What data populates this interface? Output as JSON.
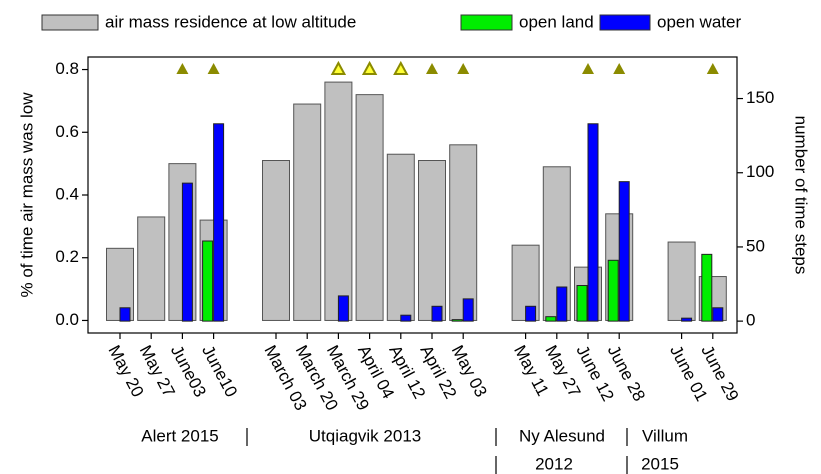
{
  "chart_data": {
    "type": "bar",
    "categories": [
      "May 20",
      "May 27",
      "June03",
      "June10",
      null,
      "March 03",
      "March 20",
      "March 29",
      "April 04",
      "April 12",
      "April 22",
      "May 03",
      null,
      "May 11",
      "May 27",
      "June 12",
      "June 28",
      null,
      "June 01",
      "June 29"
    ],
    "series": [
      {
        "name": "air mass residence at low altitude",
        "color": "#c0c0c0",
        "axis": "y",
        "values": [
          0.23,
          0.33,
          0.5,
          0.32,
          null,
          0.51,
          0.69,
          0.76,
          0.72,
          0.53,
          0.51,
          0.56,
          null,
          0.24,
          0.49,
          0.17,
          0.34,
          null,
          0.25,
          0.14
        ]
      },
      {
        "name": "open land",
        "color": "#00ee00",
        "axis": "y2",
        "values": [
          0,
          0,
          0,
          54,
          null,
          0,
          0,
          0,
          0,
          0,
          0,
          1,
          null,
          0,
          3,
          24,
          41,
          null,
          0,
          45
        ]
      },
      {
        "name": "open water",
        "color": "#0000ff",
        "axis": "y2",
        "values": [
          9,
          0,
          93,
          133,
          null,
          0,
          0,
          17,
          0,
          4,
          10,
          15,
          null,
          10,
          23,
          133,
          94,
          null,
          2,
          9
        ]
      }
    ],
    "ylabel": "% of time air mass was low",
    "y2label": "number of time steps",
    "ylim": [
      -0.04,
      0.84
    ],
    "yticks": [
      {
        "value": 0,
        "label": "0.0"
      },
      0.2,
      0.4,
      0.6,
      0.8
    ],
    "y2lim": [
      -8,
      178
    ],
    "y2ticks": [
      0,
      50,
      100,
      150
    ],
    "markers": {
      "color": "#8b8b00",
      "open_color": "#ffff33",
      "filled": [
        2,
        3,
        10,
        11,
        15,
        16,
        19
      ],
      "open": [
        7,
        8,
        9
      ]
    },
    "groups": [
      {
        "name": [
          "Alert 2015"
        ]
      },
      {
        "name": [
          "Utqiagvik 2013"
        ]
      },
      {
        "name": [
          "Ny Alesund",
          "2012"
        ]
      },
      {
        "name": [
          "Villum",
          "2015"
        ]
      }
    ],
    "legend": "top"
  }
}
